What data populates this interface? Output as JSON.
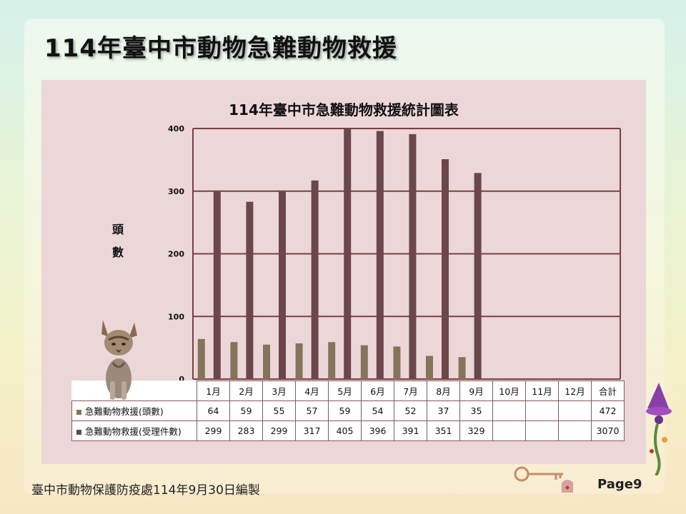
{
  "slide": {
    "title": "114年臺中市動物急難動物救援",
    "footer": "臺中市動物保護防疫處114年9月30日編製",
    "page": "Page9"
  },
  "chart_data": {
    "type": "bar",
    "title": "114年臺中市急難動物救援統計圖表",
    "ylabel": "頭數",
    "ylabel_chars": [
      "頭",
      "數"
    ],
    "ylim": [
      0,
      400
    ],
    "yticks": [
      0,
      100,
      200,
      300,
      400
    ],
    "grid": true,
    "categories": [
      "1月",
      "2月",
      "3月",
      "4月",
      "5月",
      "6月",
      "7月",
      "8月",
      "9月",
      "10月",
      "11月",
      "12月"
    ],
    "total_label": "合計",
    "series": [
      {
        "name": "急難動物救援(頭數)",
        "color": "#847459",
        "values": [
          64,
          59,
          55,
          57,
          59,
          54,
          52,
          37,
          35,
          null,
          null,
          null
        ],
        "total": 472
      },
      {
        "name": "急難動物救援(受理件數)",
        "color": "#6b464b",
        "values": [
          299,
          283,
          299,
          317,
          405,
          396,
          391,
          351,
          329,
          null,
          null,
          null
        ],
        "total": 3070
      }
    ]
  },
  "colors": {
    "plot_background": "#ecd7d8",
    "grid_line": "#7a3e43"
  },
  "icons": [
    "kitten-photo",
    "magic-wand-decoration",
    "key-decoration"
  ]
}
